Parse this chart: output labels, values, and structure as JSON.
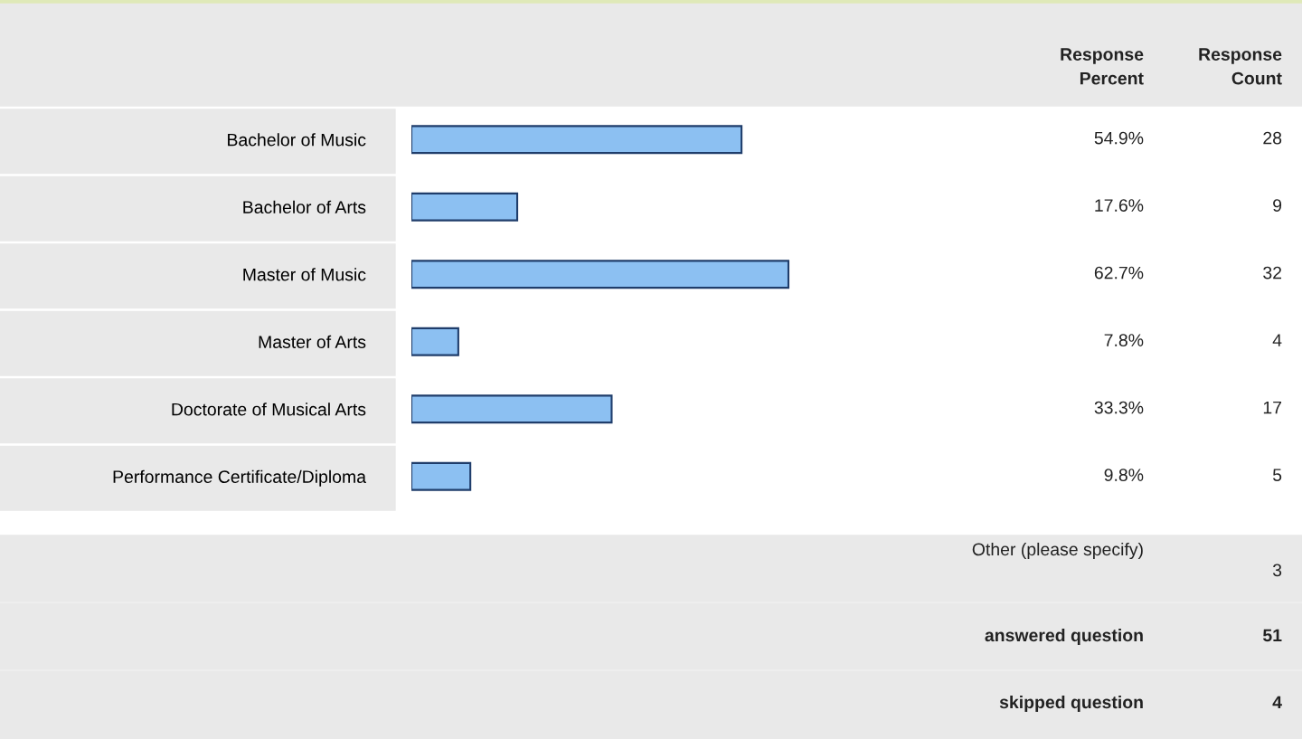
{
  "chart_data": {
    "type": "bar",
    "orientation": "horizontal",
    "categories": [
      "Bachelor of Music",
      "Bachelor of Arts",
      "Master of Music",
      "Master of Arts",
      "Doctorate of Musical Arts",
      "Performance Certificate/Diploma"
    ],
    "values": [
      54.9,
      17.6,
      62.7,
      7.8,
      33.3,
      9.8
    ],
    "value_labels": [
      "54.9%",
      "17.6%",
      "62.7%",
      "7.8%",
      "33.3%",
      "9.8%"
    ],
    "color": "#8cc0f2",
    "tick_labels": "y",
    "grid": false,
    "legend": false,
    "annotations": [
      "28",
      "9",
      "32",
      "4",
      "17",
      "5",
      "Response\nPercent",
      "Response\nCount",
      "Other (please specify)",
      "3",
      "answered question",
      "51",
      "skipped question",
      "4"
    ]
  }
}
